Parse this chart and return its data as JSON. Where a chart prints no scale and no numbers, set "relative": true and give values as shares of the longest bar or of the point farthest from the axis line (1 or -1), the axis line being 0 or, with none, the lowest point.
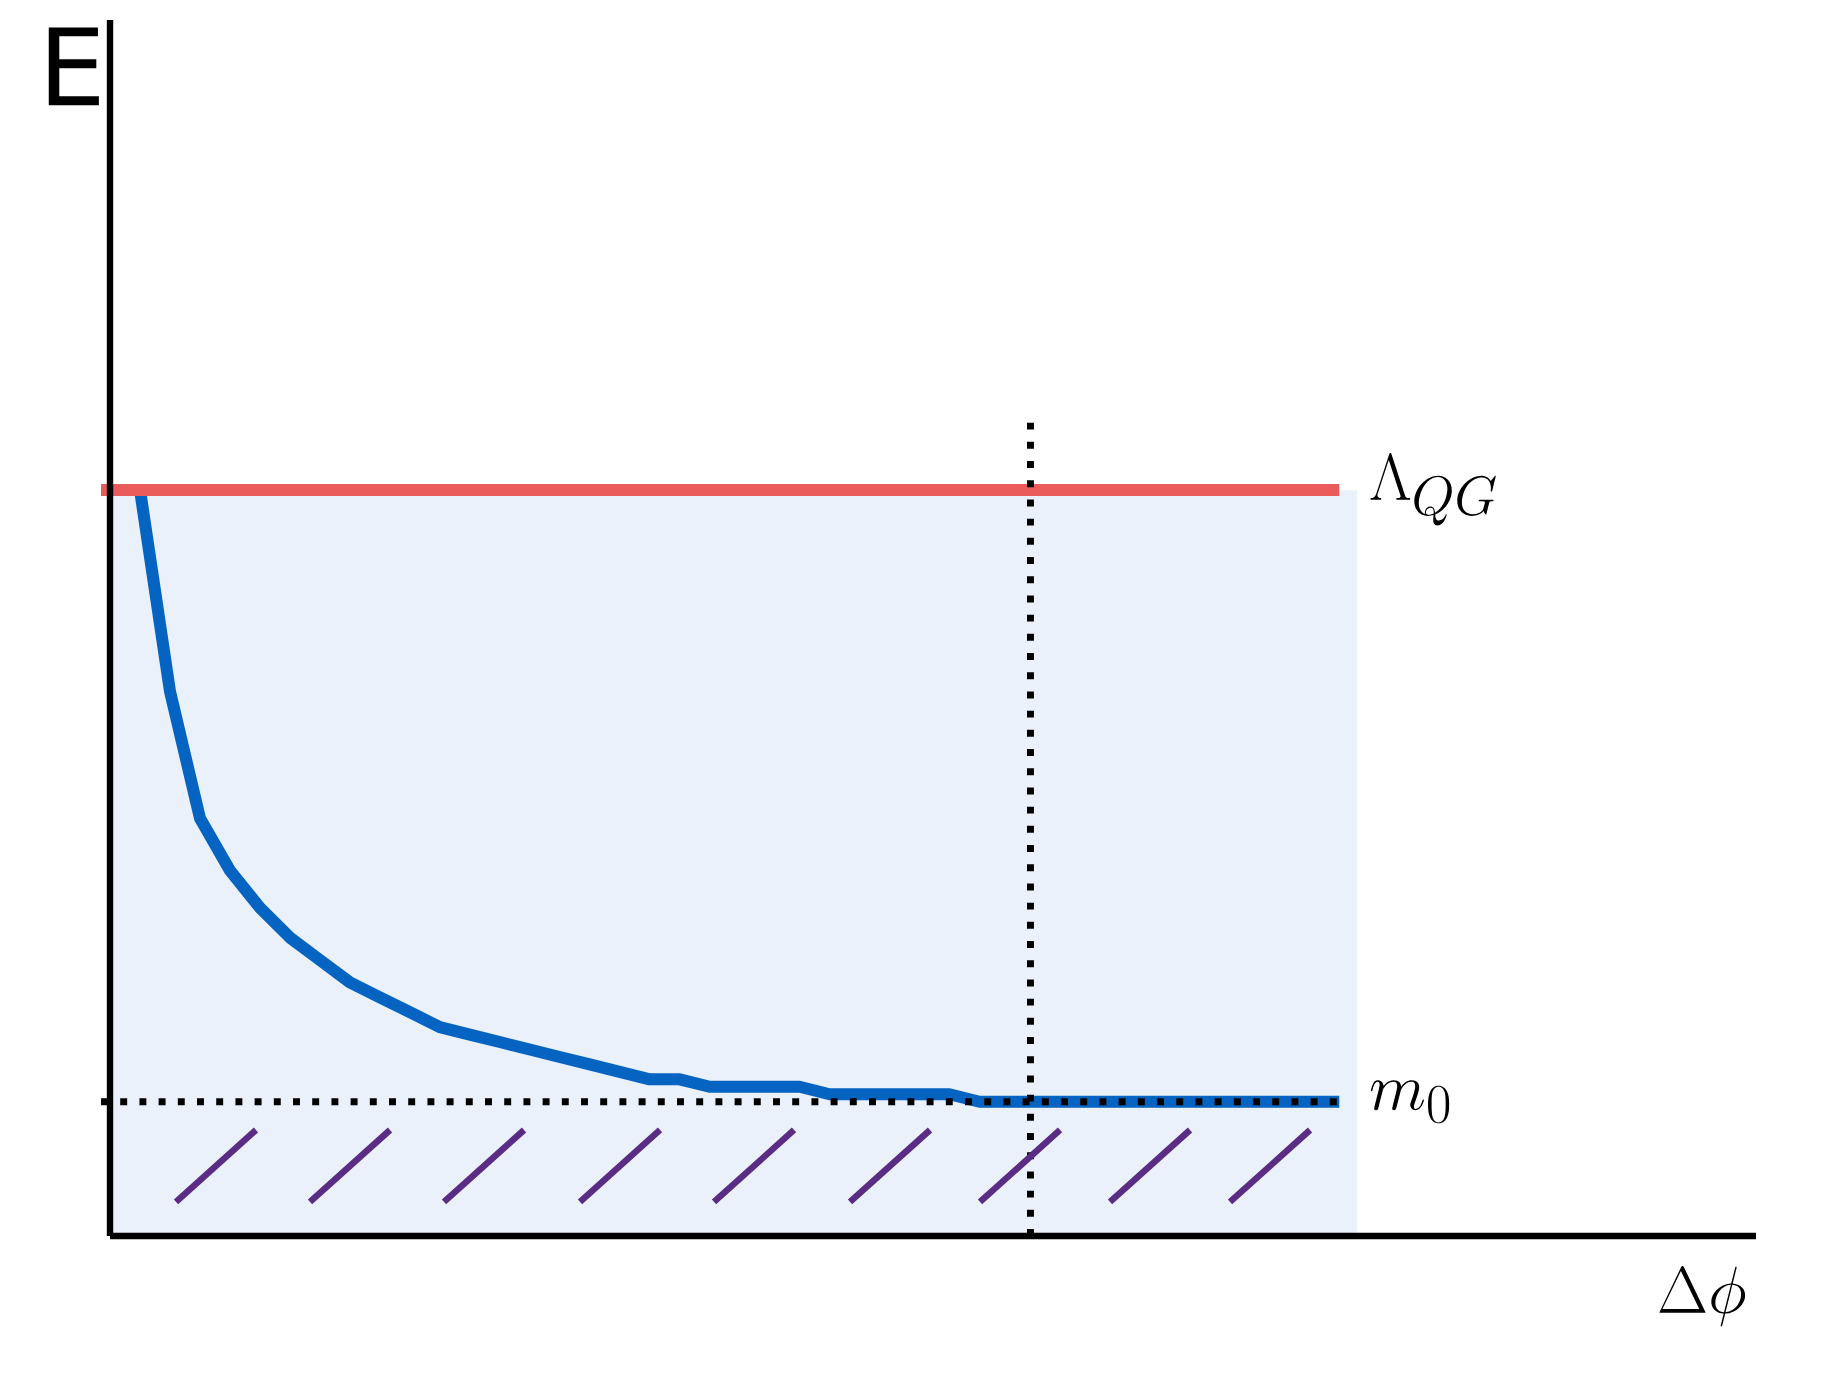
{
  "chart_data": {
    "type": "line",
    "relative": true,
    "ylabel": "E",
    "annotations": [
      "\\Delta\\phi"
    ],
    "color": "#0563c1",
    "categories": [
      null,
      null,
      null,
      null,
      null,
      null,
      null,
      null,
      null,
      null,
      null,
      null,
      null,
      null,
      null,
      null,
      null,
      null,
      null,
      null,
      null,
      null,
      null,
      null,
      null,
      null,
      null,
      null,
      null,
      null,
      null,
      null,
      null,
      null,
      null,
      null,
      null,
      null,
      null,
      null,
      null
    ],
    "values": [
      1.0,
      0.73,
      0.56,
      0.49,
      0.44,
      0.4,
      0.37,
      0.34,
      0.32,
      0.3,
      0.28,
      0.27,
      0.26,
      0.25,
      0.24,
      0.23,
      0.22,
      0.21,
      0.21,
      0.2,
      0.2,
      0.2,
      0.2,
      0.19,
      0.19,
      0.19,
      0.19,
      0.19,
      0.18,
      0.18,
      0.18,
      0.18,
      0.18,
      0.18,
      0.18,
      0.18,
      0.18,
      0.18,
      0.18,
      0.18,
      0.18
    ],
    "ref_lines": [
      {
        "axis": "y",
        "value": 1.0,
        "label": "\\Lambda_{QG}",
        "color": "#ea5b5b",
        "line_style": "solid"
      },
      {
        "axis": "y",
        "value": 0.18,
        "label": "m_0",
        "color": "#000000",
        "line_style": "dotted"
      }
    ],
    "bands": [
      {
        "axis": "y",
        "from": 0,
        "to": 1.0,
        "color": "#eaf1fa"
      }
    ]
  }
}
